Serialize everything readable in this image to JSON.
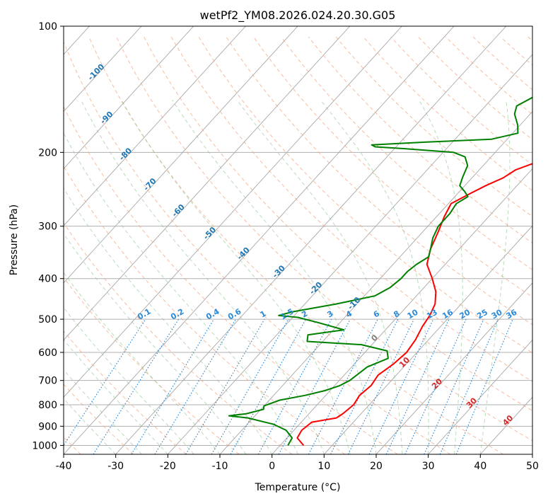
{
  "chart_data": {
    "type": "line",
    "title": "wetPf2_YM08.2026.024.20.30.G05",
    "xlabel": "Temperature (°C)",
    "ylabel": "Pressure (hPa)",
    "xlim": [
      -40,
      50
    ],
    "ylim": [
      1050,
      100
    ],
    "y_scale": "log",
    "grid": true,
    "x_ticks": [
      -40,
      -30,
      -20,
      -10,
      0,
      10,
      20,
      30,
      40,
      50
    ],
    "y_ticks": [
      100,
      200,
      300,
      400,
      500,
      600,
      700,
      800,
      900,
      1000
    ],
    "series": [
      {
        "color": "#ff0000",
        "points": [
          [
            4.5,
            1000
          ],
          [
            2,
            960
          ],
          [
            1.5,
            920
          ],
          [
            2,
            880
          ],
          [
            6,
            860
          ],
          [
            6.5,
            840
          ],
          [
            7,
            800
          ],
          [
            6.5,
            760
          ],
          [
            7,
            720
          ],
          [
            6.5,
            680
          ],
          [
            7.5,
            640
          ],
          [
            8,
            600
          ],
          [
            7.5,
            560
          ],
          [
            6.5,
            520
          ],
          [
            6,
            490
          ],
          [
            5,
            460
          ],
          [
            3,
            430
          ],
          [
            0,
            400
          ],
          [
            -3.5,
            370
          ],
          [
            -5.5,
            340
          ],
          [
            -7,
            310
          ],
          [
            -8.5,
            285
          ],
          [
            -9.5,
            265
          ],
          [
            -7.5,
            250
          ],
          [
            -6,
            240
          ],
          [
            -4,
            230
          ],
          [
            -3,
            220
          ],
          [
            0,
            210
          ],
          [
            4,
            200
          ],
          [
            9,
            192
          ],
          [
            12,
            185
          ],
          [
            15,
            175
          ],
          [
            17,
            165
          ],
          [
            19,
            155
          ],
          [
            22,
            145
          ],
          [
            24,
            140
          ],
          [
            26,
            132
          ],
          [
            28.5,
            125
          ],
          [
            31,
            117
          ],
          [
            33.5,
            108
          ],
          [
            35,
            102
          ],
          [
            36,
            100
          ]
        ]
      },
      {
        "color": "#008000",
        "points": [
          [
            1.5,
            1000
          ],
          [
            1,
            960
          ],
          [
            -1.5,
            920
          ],
          [
            -5,
            890
          ],
          [
            -11,
            860
          ],
          [
            -15,
            850
          ],
          [
            -12,
            840
          ],
          [
            -9.5,
            820
          ],
          [
            -10,
            805
          ],
          [
            -8,
            780
          ],
          [
            -4,
            760
          ],
          [
            -1,
            740
          ],
          [
            1,
            720
          ],
          [
            2,
            700
          ],
          [
            3,
            650
          ],
          [
            5.5,
            620
          ],
          [
            4,
            595
          ],
          [
            -2,
            575
          ],
          [
            -13,
            565
          ],
          [
            -14,
            545
          ],
          [
            -8,
            530
          ],
          [
            -14,
            510
          ],
          [
            -19,
            495
          ],
          [
            -23,
            490
          ],
          [
            -21,
            480
          ],
          [
            -14,
            460
          ],
          [
            -8,
            440
          ],
          [
            -6.5,
            420
          ],
          [
            -6,
            400
          ],
          [
            -6,
            385
          ],
          [
            -5.5,
            370
          ],
          [
            -4.5,
            355
          ],
          [
            -5.5,
            340
          ],
          [
            -7,
            320
          ],
          [
            -8,
            300
          ],
          [
            -8,
            280
          ],
          [
            -8.5,
            265
          ],
          [
            -7.5,
            255
          ],
          [
            -9,
            248
          ],
          [
            -11,
            240
          ],
          [
            -12,
            228
          ],
          [
            -13,
            215
          ],
          [
            -15,
            205
          ],
          [
            -18,
            200
          ],
          [
            -28,
            196
          ],
          [
            -34,
            194
          ],
          [
            -35,
            192
          ],
          [
            -25,
            189
          ],
          [
            -13,
            186
          ],
          [
            -9,
            180
          ],
          [
            -10.5,
            172
          ],
          [
            -13,
            162
          ],
          [
            -14,
            155
          ],
          [
            -12.5,
            148
          ],
          [
            -10.5,
            143
          ],
          [
            -7.5,
            136
          ],
          [
            -5,
            128
          ],
          [
            -3,
            120
          ],
          [
            -1,
            112
          ],
          [
            0.5,
            106
          ],
          [
            2,
            100
          ]
        ]
      }
    ],
    "dry_adiabat_labels": [
      "-100",
      "-90",
      "-80",
      "-70",
      "-60",
      "-50",
      "-40",
      "-30",
      "-20",
      "-10",
      "0",
      "10",
      "20",
      "30",
      "40"
    ],
    "mixing_ratio_labels": [
      "0.1",
      "0.2",
      "0.4",
      "0.6",
      "1",
      "1.5",
      "2",
      "3",
      "4",
      "6",
      "8",
      "10",
      "13",
      "16",
      "20",
      "25",
      "30",
      "36"
    ]
  }
}
